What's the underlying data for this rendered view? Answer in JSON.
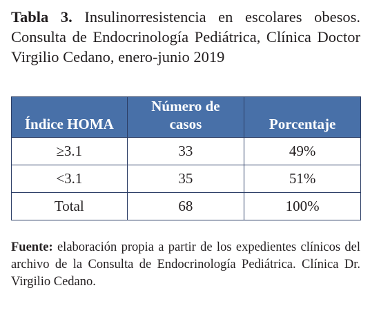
{
  "caption": {
    "label": "Tabla 3.",
    "text": "Insulinorresistencia en escolares obesos. Consulta de Endocrinología Pediátrica, Clínica Doctor Virgilio Cedano, enero-junio 2019"
  },
  "table": {
    "header": [
      "Índice HOMA",
      "Número de casos",
      "Porcentaje"
    ],
    "rows": [
      [
        "≥3.1",
        "33",
        "49%"
      ],
      [
        "<3.1",
        "35",
        "51%"
      ],
      [
        "Total",
        "68",
        "100%"
      ]
    ]
  },
  "source": {
    "label": "Fuente:",
    "text": "elaboración propia a partir de los expedientes clínicos del archivo de la Consulta de Endocrinología Pediátrica. Clínica Dr. Virgilio Cedano."
  }
}
